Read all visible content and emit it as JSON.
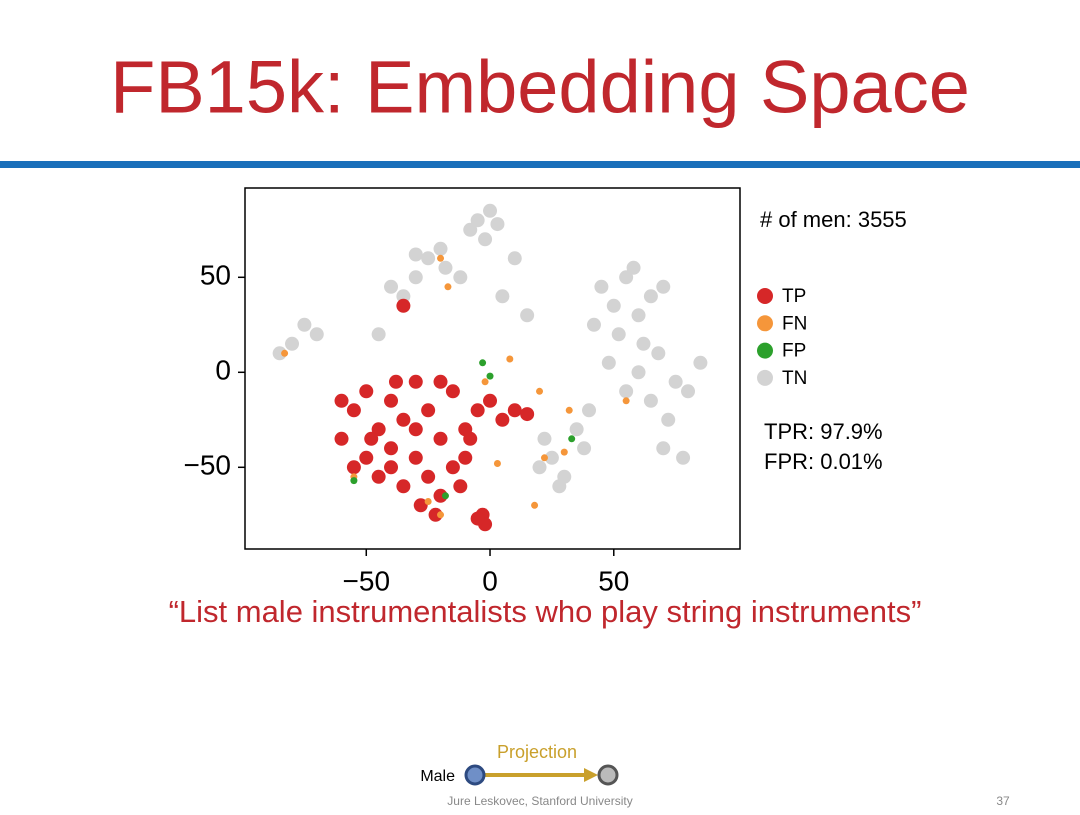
{
  "header": {
    "title": "FB15k: Embedding Space"
  },
  "chart_data": {
    "type": "scatter",
    "series": [
      {
        "name": "TP",
        "color": "#d62728",
        "x": [
          -55,
          -50,
          -45,
          -40,
          -35,
          -30,
          -25,
          -20,
          -15,
          -10,
          -50,
          -45,
          -40,
          -35,
          -30,
          -25,
          -20,
          -15,
          -10,
          -5,
          0,
          5,
          10,
          15,
          -60,
          -55,
          -60,
          -38,
          -28,
          -22,
          -3,
          -2,
          -5,
          -30,
          -40,
          -20,
          -48,
          -12,
          -8,
          -35
        ],
        "y": [
          -20,
          -10,
          -30,
          -15,
          -25,
          -5,
          -20,
          -35,
          -10,
          -30,
          -45,
          -55,
          -40,
          -60,
          -45,
          -55,
          -65,
          -50,
          -45,
          -20,
          -15,
          -25,
          -20,
          -22,
          -35,
          -50,
          -15,
          -5,
          -70,
          -75,
          -75,
          -80,
          -77,
          -30,
          -50,
          -5,
          -35,
          -60,
          -35,
          35
        ]
      },
      {
        "name": "FN",
        "color": "#f5963a",
        "x": [
          -20,
          -17,
          -83,
          8,
          -2,
          20,
          32,
          30,
          22,
          55,
          18,
          -20,
          -25,
          3,
          -55
        ],
        "y": [
          60,
          45,
          10,
          7,
          -5,
          -10,
          -20,
          -42,
          -45,
          -15,
          -70,
          -75,
          -68,
          -48,
          -55
        ]
      },
      {
        "name": "FP",
        "color": "#2ca02c",
        "x": [
          -3,
          0,
          33,
          -55,
          -18
        ],
        "y": [
          5,
          -2,
          -35,
          -57,
          -65
        ]
      },
      {
        "name": "TN",
        "color": "#d3d3d3",
        "x": [
          -5,
          0,
          -8,
          3,
          -2,
          -25,
          -18,
          -30,
          -12,
          -20,
          45,
          55,
          65,
          60,
          50,
          70,
          42,
          58,
          52,
          62,
          48,
          68,
          75,
          55,
          65,
          72,
          80,
          60,
          -75,
          -80,
          -70,
          -85,
          25,
          20,
          30,
          22,
          28,
          35,
          40,
          38,
          -40,
          -35,
          -30,
          5,
          10,
          15,
          -45,
          85,
          78,
          70
        ],
        "y": [
          80,
          85,
          75,
          78,
          70,
          60,
          55,
          62,
          50,
          65,
          45,
          50,
          40,
          30,
          35,
          45,
          25,
          55,
          20,
          15,
          5,
          10,
          -5,
          -10,
          -15,
          -25,
          -10,
          0,
          25,
          15,
          20,
          10,
          -45,
          -50,
          -55,
          -35,
          -60,
          -30,
          -20,
          -40,
          45,
          40,
          50,
          40,
          60,
          30,
          20,
          5,
          -45,
          -40
        ]
      }
    ],
    "xlim": [
      -99,
      101
    ],
    "ylim": [
      -93,
      97
    ],
    "xticks": [
      {
        "value": -50,
        "label": "−50"
      },
      0,
      50
    ],
    "yticks": [
      50,
      0,
      {
        "value": -50,
        "label": "−50"
      }
    ],
    "annotations": [
      "# of men: 3555",
      "TPR: 97.9%",
      "FPR: 0.01%"
    ]
  },
  "caption": "“List male instrumentalists who play string instruments”",
  "diagram": {
    "edge_label": "Projection",
    "source": "Male"
  },
  "footer": {
    "author": "Jure Leskovec, Stanford University",
    "page": "37"
  }
}
